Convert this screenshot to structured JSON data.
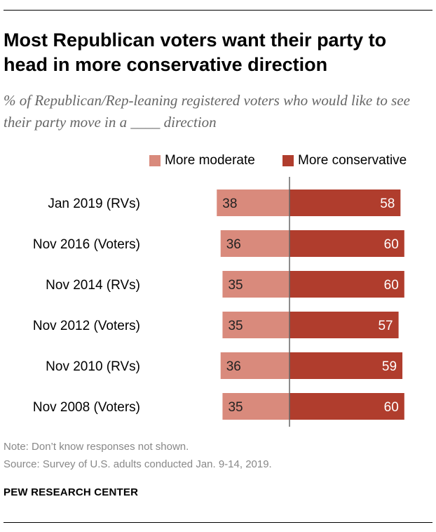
{
  "title": "Most Republican voters want their party to head in more conservative direction",
  "subtitle": "% of Republican/Rep-leaning registered voters who would like to see their party move in a ____ direction",
  "legend": {
    "moderate": "More moderate",
    "conservative": "More conservative"
  },
  "colors": {
    "moderate": "#d98a7c",
    "conservative": "#b03d2d",
    "axis": "#666666"
  },
  "chart_data": {
    "type": "bar",
    "orientation": "horizontal-diverging",
    "categories": [
      "Jan 2019 (RVs)",
      "Nov 2016  (Voters)",
      "Nov 2014 (RVs)",
      "Nov 2012 (Voters)",
      "Nov 2010 (RVs)",
      "Nov 2008 (Voters)"
    ],
    "series": [
      {
        "name": "More moderate",
        "values": [
          38,
          36,
          35,
          35,
          36,
          35
        ]
      },
      {
        "name": "More conservative",
        "values": [
          58,
          60,
          60,
          57,
          59,
          60
        ]
      }
    ],
    "legend_position": "top-right",
    "grid": false
  },
  "footer": {
    "note": "Note: Don’t know responses not shown.",
    "source": "Source: Survey of U.S. adults conducted Jan. 9-14, 2019.",
    "brand": "PEW RESEARCH CENTER"
  }
}
